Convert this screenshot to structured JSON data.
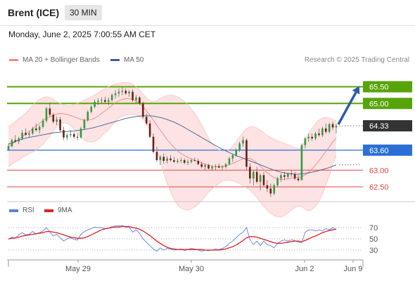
{
  "header": {
    "symbol": "Brent (ICE)",
    "timeframe": "30 MIN"
  },
  "datetime": "Monday, June 2, 2025 7:00:55 AM CET",
  "legend": {
    "ma20_bb": {
      "label": "MA 20 + Bollinger Bands",
      "color": "#f08a85"
    },
    "ma50": {
      "label": "MA 50",
      "color": "#3a5f96"
    },
    "credit": "Research © 2025 Trading Central"
  },
  "rsi_legend": {
    "rsi": {
      "label": "RSI",
      "color": "#5b7fe0"
    },
    "ma9": {
      "label": "9MA",
      "color": "#e02020"
    }
  },
  "chart_data": {
    "type": "candlestick",
    "price_range": [
      62.1,
      66.1
    ],
    "x_labels": [
      "May 29",
      "May 30",
      "Jun 2",
      "Jun 9"
    ],
    "current_price": {
      "value": 64.33,
      "label": "64.33",
      "color": "#333333"
    },
    "levels": [
      {
        "label": "65.50",
        "value": 65.5,
        "kind": "resistance",
        "color": "#57a40a"
      },
      {
        "label": "65.00",
        "value": 65.0,
        "kind": "resistance",
        "color": "#57a40a"
      },
      {
        "label": "63.60",
        "value": 63.6,
        "kind": "pivot",
        "color": "#2b6fd6"
      },
      {
        "label": "63.00",
        "value": 63.0,
        "kind": "support",
        "color": "#e04545"
      },
      {
        "label": "62.50",
        "value": 62.5,
        "kind": "support",
        "color": "#e04545"
      }
    ],
    "ohlc": [
      [
        63.62,
        63.8,
        63.58,
        63.72
      ],
      [
        63.72,
        63.95,
        63.68,
        63.9
      ],
      [
        63.9,
        64.05,
        63.82,
        63.86
      ],
      [
        63.86,
        64.0,
        63.78,
        63.95
      ],
      [
        63.95,
        64.2,
        63.9,
        64.12
      ],
      [
        64.12,
        64.25,
        64.02,
        64.06
      ],
      [
        64.06,
        64.18,
        63.98,
        64.1
      ],
      [
        64.1,
        64.3,
        64.05,
        64.25
      ],
      [
        64.25,
        64.4,
        64.15,
        64.2
      ],
      [
        64.2,
        64.35,
        64.1,
        64.3
      ],
      [
        64.3,
        64.55,
        64.25,
        64.48
      ],
      [
        64.48,
        64.9,
        64.42,
        64.85
      ],
      [
        64.85,
        65.02,
        64.6,
        64.66
      ],
      [
        64.66,
        64.72,
        64.4,
        64.45
      ],
      [
        64.45,
        64.6,
        64.35,
        64.52
      ],
      [
        64.52,
        64.6,
        64.15,
        64.2
      ],
      [
        64.2,
        64.3,
        63.9,
        63.98
      ],
      [
        63.98,
        64.1,
        63.9,
        64.05
      ],
      [
        64.05,
        64.2,
        63.98,
        64.08
      ],
      [
        64.08,
        64.15,
        63.95,
        64.0
      ],
      [
        64.0,
        64.1,
        63.9,
        63.98
      ],
      [
        63.98,
        64.3,
        63.95,
        64.25
      ],
      [
        64.25,
        64.55,
        64.2,
        64.5
      ],
      [
        64.5,
        64.8,
        64.45,
        64.75
      ],
      [
        64.75,
        64.95,
        64.7,
        64.9
      ],
      [
        64.9,
        65.12,
        64.85,
        65.05
      ],
      [
        65.05,
        65.15,
        64.95,
        65.08
      ],
      [
        65.08,
        65.18,
        65.0,
        65.1
      ],
      [
        65.1,
        65.2,
        65.0,
        65.05
      ],
      [
        65.05,
        65.18,
        64.95,
        65.1
      ],
      [
        65.1,
        65.3,
        65.05,
        65.25
      ],
      [
        65.25,
        65.4,
        65.15,
        65.3
      ],
      [
        65.3,
        65.45,
        65.2,
        65.35
      ],
      [
        65.35,
        65.48,
        65.25,
        65.38
      ],
      [
        65.38,
        65.45,
        65.25,
        65.3
      ],
      [
        65.3,
        65.4,
        65.2,
        65.35
      ],
      [
        65.35,
        65.42,
        65.05,
        65.1
      ],
      [
        65.1,
        65.25,
        65.0,
        65.18
      ],
      [
        65.18,
        65.22,
        64.95,
        65.0
      ],
      [
        65.0,
        65.05,
        64.55,
        64.6
      ],
      [
        64.6,
        64.7,
        64.35,
        64.4
      ],
      [
        64.4,
        64.5,
        63.95,
        64.0
      ],
      [
        64.0,
        64.1,
        63.5,
        63.55
      ],
      [
        63.55,
        63.7,
        63.25,
        63.3
      ],
      [
        63.3,
        63.45,
        63.15,
        63.4
      ],
      [
        63.4,
        63.5,
        63.2,
        63.28
      ],
      [
        63.28,
        63.42,
        63.2,
        63.35
      ],
      [
        63.35,
        63.45,
        63.25,
        63.3
      ],
      [
        63.3,
        63.4,
        63.22,
        63.25
      ],
      [
        63.25,
        63.35,
        63.2,
        63.28
      ],
      [
        63.28,
        63.38,
        63.22,
        63.3
      ],
      [
        63.3,
        63.35,
        63.18,
        63.22
      ],
      [
        63.22,
        63.32,
        63.15,
        63.25
      ],
      [
        63.25,
        63.35,
        63.2,
        63.3
      ],
      [
        63.3,
        63.38,
        63.25,
        63.28
      ],
      [
        63.28,
        63.35,
        63.15,
        63.18
      ],
      [
        63.18,
        63.25,
        63.05,
        63.1
      ],
      [
        63.1,
        63.2,
        63.0,
        63.15
      ],
      [
        63.15,
        63.2,
        63.02,
        63.05
      ],
      [
        63.05,
        63.15,
        62.98,
        63.1
      ],
      [
        63.1,
        63.18,
        63.0,
        63.12
      ],
      [
        63.12,
        63.2,
        63.05,
        63.08
      ],
      [
        63.08,
        63.15,
        63.0,
        63.1
      ],
      [
        63.1,
        63.22,
        63.05,
        63.18
      ],
      [
        63.18,
        63.4,
        63.15,
        63.35
      ],
      [
        63.35,
        63.5,
        63.25,
        63.45
      ],
      [
        63.45,
        63.65,
        63.4,
        63.6
      ],
      [
        63.6,
        63.85,
        63.55,
        63.8
      ],
      [
        63.8,
        64.0,
        63.7,
        63.9
      ],
      [
        63.9,
        63.95,
        63.0,
        63.1
      ],
      [
        63.1,
        63.2,
        62.6,
        62.75
      ],
      [
        62.75,
        63.0,
        62.55,
        62.95
      ],
      [
        62.95,
        63.1,
        62.6,
        62.65
      ],
      [
        62.65,
        62.9,
        62.4,
        62.85
      ],
      [
        62.85,
        62.95,
        62.5,
        62.55
      ],
      [
        62.55,
        62.7,
        62.35,
        62.45
      ],
      [
        62.45,
        62.6,
        62.2,
        62.3
      ],
      [
        62.3,
        62.6,
        62.25,
        62.55
      ],
      [
        62.55,
        62.8,
        62.5,
        62.75
      ],
      [
        62.75,
        62.9,
        62.65,
        62.85
      ],
      [
        62.85,
        62.95,
        62.7,
        62.8
      ],
      [
        62.8,
        62.92,
        62.75,
        62.9
      ],
      [
        62.9,
        63.0,
        62.8,
        62.88
      ],
      [
        62.88,
        62.95,
        62.7,
        62.75
      ],
      [
        62.75,
        62.85,
        62.65,
        62.7
      ],
      [
        62.7,
        63.8,
        62.7,
        63.75
      ],
      [
        63.75,
        64.0,
        63.65,
        63.95
      ],
      [
        63.95,
        64.1,
        63.85,
        64.0
      ],
      [
        64.0,
        64.1,
        63.88,
        63.95
      ],
      [
        63.95,
        64.15,
        63.9,
        64.1
      ],
      [
        64.1,
        64.25,
        64.0,
        64.05
      ],
      [
        64.05,
        64.3,
        64.0,
        64.25
      ],
      [
        64.25,
        64.4,
        64.1,
        64.15
      ],
      [
        64.15,
        64.42,
        64.1,
        64.38
      ],
      [
        64.38,
        64.45,
        64.2,
        64.28
      ],
      [
        64.28,
        64.4,
        64.1,
        64.33
      ]
    ],
    "ma20": [
      63.7,
      63.78,
      63.85,
      63.92,
      64.0,
      64.08,
      64.16,
      64.24,
      64.32,
      64.4,
      64.48,
      64.55,
      64.6,
      64.65,
      64.68,
      64.7,
      64.69,
      64.67,
      64.64,
      64.6,
      64.56,
      64.52,
      64.5,
      64.5,
      64.52,
      64.56,
      64.62,
      64.7,
      64.78,
      64.86,
      64.94,
      65.02,
      65.08,
      65.12,
      65.14,
      65.14,
      65.12,
      65.08,
      65.0,
      64.9,
      64.78,
      64.64,
      64.5,
      64.35,
      64.2,
      64.06,
      63.92,
      63.8,
      63.68,
      63.58,
      63.5,
      63.44,
      63.38,
      63.34,
      63.3,
      63.26,
      63.22,
      63.18,
      63.15,
      63.12,
      63.1,
      63.1,
      63.11,
      63.13,
      63.16,
      63.2,
      63.25,
      63.3,
      63.34,
      63.36,
      63.35,
      63.3,
      63.22,
      63.12,
      63.02,
      62.92,
      62.84,
      62.78,
      62.74,
      62.72,
      62.72,
      62.74,
      62.76,
      62.78,
      62.78,
      62.8,
      62.86,
      62.94,
      63.04,
      63.16,
      63.28,
      63.42,
      63.56,
      63.7,
      63.84,
      63.96
    ],
    "ma50": [
      63.78,
      63.82,
      63.86,
      63.9,
      63.93,
      63.96,
      63.98,
      64.0,
      64.02,
      64.04,
      64.06,
      64.08,
      64.1,
      64.12,
      64.13,
      64.14,
      64.15,
      64.16,
      64.17,
      64.18,
      64.19,
      64.2,
      64.22,
      64.24,
      64.26,
      64.28,
      64.31,
      64.34,
      64.37,
      64.4,
      64.43,
      64.46,
      64.49,
      64.52,
      64.55,
      64.57,
      64.59,
      64.61,
      64.62,
      64.63,
      64.63,
      64.63,
      64.62,
      64.6,
      64.58,
      64.55,
      64.52,
      64.48,
      64.44,
      64.39,
      64.34,
      64.28,
      64.22,
      64.16,
      64.1,
      64.04,
      63.98,
      63.92,
      63.86,
      63.8,
      63.74,
      63.68,
      63.63,
      63.58,
      63.53,
      63.48,
      63.44,
      63.4,
      63.36,
      63.32,
      63.28,
      63.24,
      63.2,
      63.16,
      63.12,
      63.08,
      63.04,
      63.0,
      62.97,
      62.94,
      62.92,
      62.9,
      62.89,
      62.88,
      62.88,
      62.89,
      62.9,
      62.92,
      62.94,
      62.96,
      62.99,
      63.02,
      63.05,
      63.08,
      63.12,
      63.16
    ],
    "bb_upper": [
      64.3,
      64.38,
      64.46,
      64.54,
      64.62,
      64.72,
      64.82,
      64.94,
      65.04,
      65.12,
      65.18,
      65.2,
      65.18,
      65.12,
      65.05,
      65.0,
      64.96,
      64.94,
      64.94,
      64.96,
      65.0,
      65.05,
      65.1,
      65.15,
      65.2,
      65.26,
      65.32,
      65.38,
      65.44,
      65.5,
      65.54,
      65.58,
      65.6,
      65.62,
      65.63,
      65.62,
      65.58,
      65.5,
      65.4,
      65.28,
      65.16,
      65.08,
      65.05,
      65.08,
      65.14,
      65.2,
      65.24,
      65.25,
      65.24,
      65.2,
      65.14,
      65.06,
      64.96,
      64.84,
      64.7,
      64.54,
      64.36,
      64.16,
      63.96,
      63.8,
      63.68,
      63.6,
      63.56,
      63.56,
      63.62,
      63.72,
      63.85,
      64.0,
      64.14,
      64.25,
      64.3,
      64.3,
      64.26,
      64.2,
      64.12,
      64.04,
      63.98,
      63.92,
      63.88,
      63.84,
      63.8,
      63.76,
      63.72,
      63.68,
      63.65,
      63.68,
      63.9,
      64.1,
      64.26,
      64.4,
      64.5,
      64.56,
      64.58,
      64.56,
      64.52,
      64.48
    ],
    "bb_lower": [
      63.1,
      63.18,
      63.24,
      63.3,
      63.38,
      63.44,
      63.5,
      63.54,
      63.6,
      63.68,
      63.78,
      63.9,
      64.02,
      64.18,
      64.31,
      64.4,
      64.42,
      64.4,
      64.34,
      64.24,
      64.12,
      63.99,
      63.9,
      63.85,
      63.84,
      63.86,
      63.92,
      64.02,
      64.12,
      64.22,
      64.34,
      64.46,
      64.56,
      64.62,
      64.65,
      64.66,
      64.66,
      64.66,
      64.6,
      64.52,
      64.4,
      64.2,
      63.95,
      63.62,
      63.26,
      62.92,
      62.6,
      62.35,
      62.12,
      61.96,
      61.86,
      61.82,
      61.8,
      61.84,
      61.9,
      61.98,
      62.08,
      62.2,
      62.34,
      62.44,
      62.52,
      62.6,
      62.66,
      62.7,
      62.7,
      62.68,
      62.65,
      62.6,
      62.54,
      62.47,
      62.4,
      62.3,
      62.18,
      62.04,
      61.92,
      61.8,
      61.7,
      61.64,
      61.6,
      61.6,
      61.64,
      61.72,
      61.8,
      61.88,
      61.91,
      61.92,
      61.82,
      61.78,
      61.82,
      61.92,
      62.06,
      62.28,
      62.54,
      62.84,
      63.16,
      63.44
    ],
    "projection": {
      "from": 64.33,
      "to": 65.5
    },
    "rsi": {
      "levels": [
        70,
        50,
        30
      ],
      "range": [
        15,
        85
      ],
      "rsi": [
        49,
        53,
        51,
        57,
        61,
        57,
        58,
        63,
        59,
        61,
        64,
        70,
        62,
        55,
        58,
        52,
        46,
        50,
        52,
        49,
        48,
        58,
        63,
        66,
        68,
        71,
        70,
        70,
        68,
        69,
        72,
        73,
        73,
        74,
        70,
        71,
        62,
        66,
        60,
        50,
        44,
        38,
        32,
        28,
        34,
        30,
        33,
        32,
        30,
        31,
        32,
        29,
        31,
        33,
        32,
        30,
        28,
        30,
        29,
        30,
        32,
        31,
        33,
        36,
        42,
        46,
        52,
        58,
        62,
        70,
        48,
        40,
        46,
        38,
        46,
        40,
        38,
        34,
        42,
        46,
        48,
        46,
        48,
        47,
        44,
        43,
        62,
        66,
        66,
        64,
        66,
        64,
        68,
        66,
        70,
        67
      ],
      "ma9": [
        50,
        51,
        52,
        53,
        55,
        56,
        57,
        58,
        59,
        60,
        61,
        63,
        63,
        62,
        61,
        59,
        57,
        55,
        53,
        52,
        51,
        51,
        52,
        54,
        57,
        60,
        63,
        66,
        68,
        69,
        70,
        71,
        71,
        72,
        72,
        72,
        70,
        69,
        67,
        64,
        60,
        56,
        51,
        46,
        42,
        38,
        35,
        33,
        32,
        31,
        31,
        31,
        31,
        31,
        31,
        31,
        31,
        30,
        30,
        30,
        30,
        30,
        31,
        32,
        34,
        36,
        39,
        43,
        47,
        52,
        54,
        54,
        53,
        51,
        49,
        47,
        45,
        43,
        42,
        42,
        43,
        44,
        45,
        46,
        46,
        45,
        47,
        50,
        53,
        55,
        58,
        61,
        63,
        65,
        66,
        67
      ]
    }
  }
}
